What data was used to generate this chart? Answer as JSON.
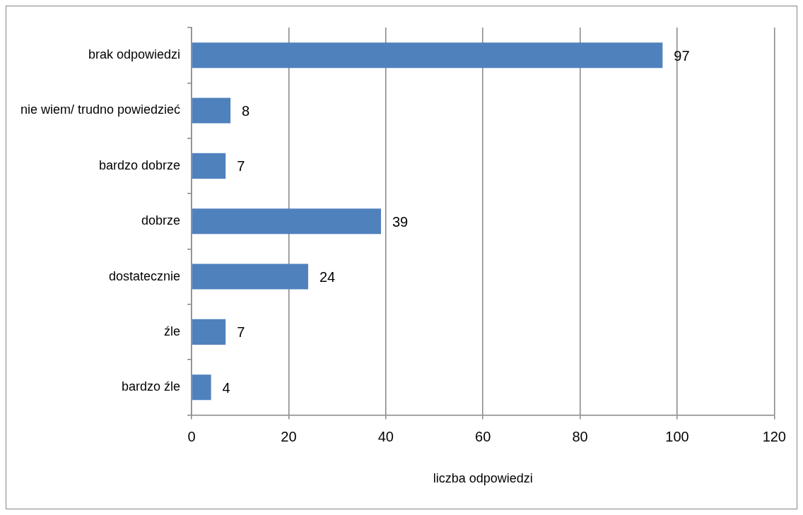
{
  "chart_data": {
    "type": "bar",
    "orientation": "horizontal",
    "xlabel": "liczba odpowiedzi",
    "categories": [
      "brak odpowiedzi",
      "nie wiem/ trudno powiedzieć",
      "bardzo dobrze",
      "dobrze",
      "dostatecznie",
      "źle",
      "bardzo źle"
    ],
    "values": [
      97,
      8,
      7,
      39,
      24,
      7,
      4
    ],
    "color": "#4f81bd",
    "xlim": [
      0,
      120
    ],
    "xticks": [
      0,
      20,
      40,
      60,
      80,
      100,
      120
    ],
    "grid": "x",
    "legend": false,
    "data_labels": true
  }
}
